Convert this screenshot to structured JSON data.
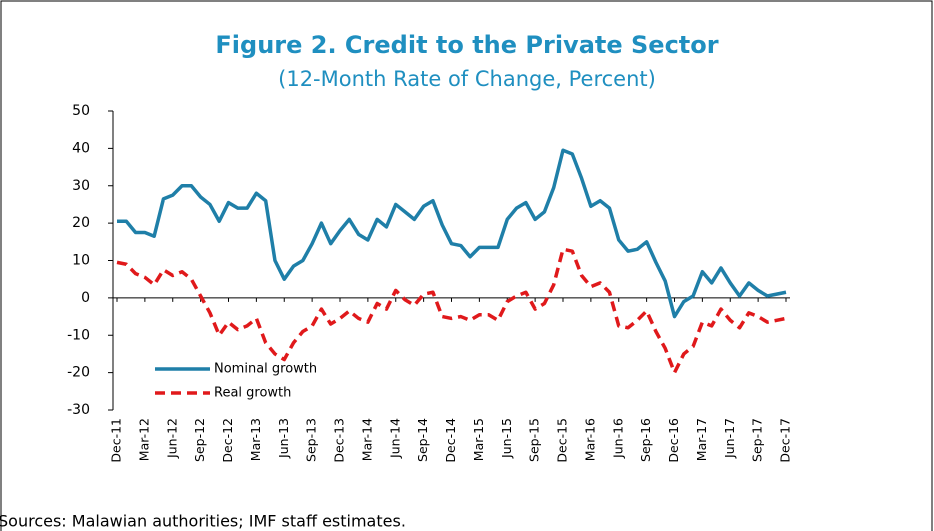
{
  "chart_data": {
    "type": "line",
    "title": "Figure 2. Credit to the Private Sector",
    "subtitle": "(12-Month Rate of Change, Percent)",
    "note": "Sources: Malawian authorities; IMF staff estimates.",
    "categories": [
      "Dec-11",
      null,
      null,
      "Mar-12",
      null,
      null,
      "Jun-12",
      null,
      null,
      "Sep-12",
      null,
      null,
      "Dec-12",
      null,
      null,
      "Mar-13",
      null,
      null,
      "Jun-13",
      null,
      null,
      "Sep-13",
      null,
      null,
      "Dec-13",
      null,
      null,
      "Mar-14",
      null,
      null,
      "Jun-14",
      null,
      null,
      "Sep-14",
      null,
      null,
      "Dec-14",
      null,
      null,
      "Mar-15",
      null,
      null,
      "Jun-15",
      null,
      null,
      "Sep-15",
      null,
      null,
      "Dec-15",
      null,
      null,
      "Mar-16",
      null,
      null,
      "Jun-16",
      null,
      null,
      "Sep-16",
      null,
      null,
      "Dec-16",
      null,
      null,
      "Mar-17",
      null,
      null,
      "Jun-17",
      null,
      null,
      "Sep-17",
      null,
      null,
      "Dec-17"
    ],
    "series": [
      {
        "name": "Nominal growth",
        "color": "#1f7fa8",
        "dash": false,
        "values": [
          20.5,
          20.5,
          17.5,
          17.5,
          16.5,
          26.5,
          27.5,
          30,
          30,
          27,
          25,
          20.5,
          25.5,
          24,
          24,
          28,
          26,
          10,
          5,
          8.5,
          10,
          14.5,
          20,
          14.5,
          18,
          21,
          17,
          15.5,
          21,
          19,
          25,
          23,
          21,
          24.5,
          26,
          19.5,
          14.5,
          14,
          11,
          13.5,
          13.5,
          13.5,
          21,
          24,
          25.5,
          21,
          23,
          29.5,
          39.5,
          38.5,
          32,
          24.5,
          26,
          24,
          15.5,
          12.5,
          13,
          15,
          9.5,
          4.5,
          -5,
          -1,
          0.5,
          7,
          4,
          8,
          4,
          0.5,
          4,
          2,
          0.5,
          1,
          1.5
        ]
      },
      {
        "name": "Real growth",
        "color": "#e0191b",
        "dash": true,
        "values": [
          9.5,
          9,
          6.5,
          5.5,
          3.5,
          7.5,
          6,
          7,
          5,
          0.5,
          -4,
          -10,
          -6.5,
          -8.5,
          -7.5,
          -5.5,
          -12,
          -15,
          -16.5,
          -12,
          -9,
          -7.5,
          -3,
          -7,
          -5.5,
          -3.5,
          -5.5,
          -6.5,
          -1.5,
          -3,
          2,
          -0.5,
          -2,
          1,
          1.5,
          -5,
          -5.5,
          -5,
          -6,
          -4.5,
          -4.5,
          -6,
          -1,
          0.5,
          1.5,
          -3,
          -1.5,
          3.5,
          13,
          12.5,
          6,
          3,
          4,
          1.5,
          -7.5,
          -8,
          -6,
          -3.5,
          -9,
          -13.5,
          -20,
          -15,
          -13,
          -6.5,
          -7.5,
          -3,
          -6,
          -8,
          -4,
          -5,
          -6.5,
          -6,
          -5.5
        ]
      }
    ],
    "ylim": [
      -30,
      50
    ],
    "yticks": [
      -30,
      -20,
      -10,
      0,
      10,
      20,
      30,
      40,
      50
    ],
    "title_color": "#1f8fc0"
  }
}
